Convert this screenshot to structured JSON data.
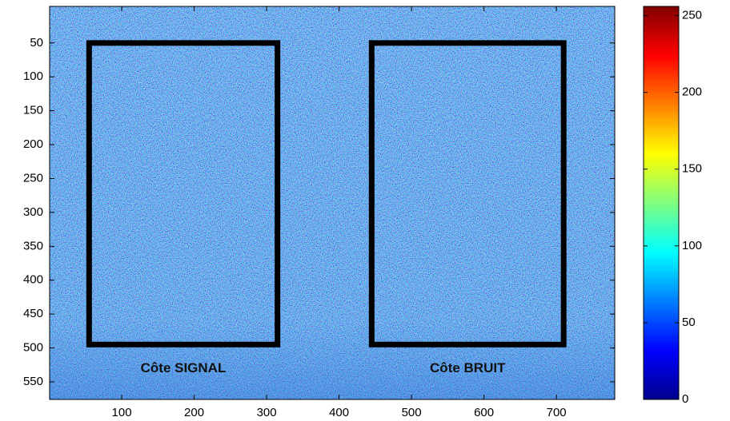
{
  "chart_data": {
    "type": "image",
    "colormap": "jet",
    "xlim": [
      0.5,
      780.5
    ],
    "ylim": [
      -4,
      576
    ],
    "y_reversed": true,
    "xticks": [
      100,
      200,
      300,
      400,
      500,
      600,
      700
    ],
    "yticks": [
      50,
      100,
      150,
      200,
      250,
      300,
      350,
      400,
      450,
      500,
      550
    ],
    "clim": [
      0,
      256
    ],
    "cticks": [
      0,
      50,
      100,
      150,
      200,
      250
    ],
    "regions": [
      {
        "label": "Côte SIGNAL",
        "x": [
          55,
          315
        ],
        "y": [
          50,
          495
        ],
        "color": "#000000"
      },
      {
        "label": "Côte BRUIT",
        "x": [
          445,
          710
        ],
        "y": [
          50,
          495
        ],
        "color": "#000000"
      }
    ]
  }
}
